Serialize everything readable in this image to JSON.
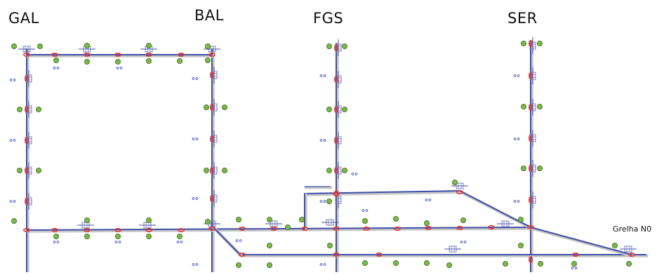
{
  "labels": {
    "gal": "GAL",
    "bal": "BAL",
    "fgs": "FGS",
    "ser": "SER",
    "grid": "Grelha N0"
  },
  "colors": {
    "beam": "#3f4fa8",
    "beam_shadow": "#c8c8c8",
    "node_green": "#7ab848",
    "node_green_stroke": "#3f6a1e",
    "support_red": "#e23a3a",
    "dof_blue": "#4a5bc4"
  },
  "icons": {
    "node": "green-circle-node",
    "support": "red-oval-support",
    "dof": "double-dot-marker",
    "joint": "box-joint-symbol"
  }
}
